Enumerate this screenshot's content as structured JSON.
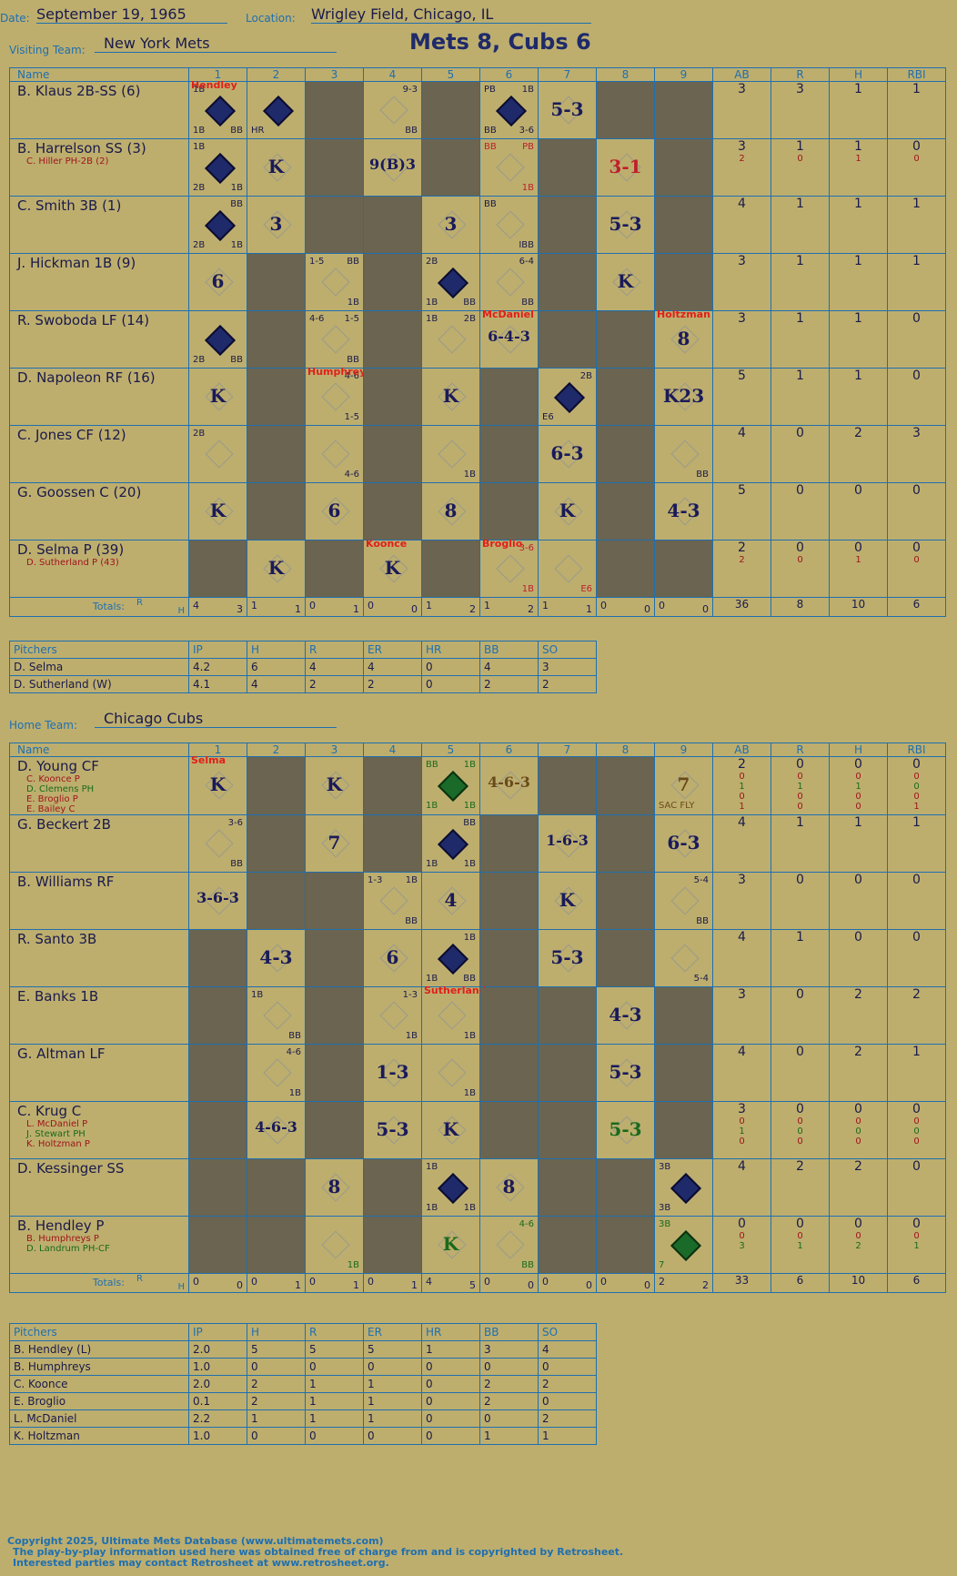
{
  "header": {
    "date_label": "Date:",
    "date": "September 19, 1965",
    "location_label": "Location:",
    "location": "Wrigley Field, Chicago, IL",
    "visiting_label": "Visiting Team:",
    "visiting_team": "New York Mets",
    "title": "Mets 8, Cubs 6",
    "home_label": "Home Team:",
    "home_team": "Chicago Cubs"
  },
  "columns": {
    "name": "Name",
    "innings": [
      "1",
      "2",
      "3",
      "4",
      "5",
      "6",
      "7",
      "8",
      "9"
    ],
    "stats": [
      "AB",
      "R",
      "H",
      "RBI"
    ],
    "totals_label": "Totals:",
    "r_label": "R",
    "h_label": "H"
  },
  "visitors": {
    "players": [
      {
        "name": "B. Klaus 2B-SS (6)",
        "subs": [],
        "ab": "3",
        "r": "3",
        "h": "1",
        "rbi": "1"
      },
      {
        "name": "B. Harrelson SS (3)",
        "subs": [
          {
            "name": "C. Hiller PH-2B (2)",
            "ab": "2",
            "r": "0",
            "h": "1",
            "rbi": "0"
          }
        ],
        "ab": "3",
        "r": "1",
        "h": "1",
        "rbi": "0"
      },
      {
        "name": "C. Smith 3B (1)",
        "subs": [],
        "ab": "4",
        "r": "1",
        "h": "1",
        "rbi": "1"
      },
      {
        "name": "J. Hickman 1B (9)",
        "subs": [],
        "ab": "3",
        "r": "1",
        "h": "1",
        "rbi": "1"
      },
      {
        "name": "R. Swoboda LF (14)",
        "subs": [],
        "ab": "3",
        "r": "1",
        "h": "1",
        "rbi": "0"
      },
      {
        "name": "D. Napoleon RF (16)",
        "subs": [],
        "ab": "5",
        "r": "1",
        "h": "1",
        "rbi": "0"
      },
      {
        "name": "C. Jones CF (12)",
        "subs": [],
        "ab": "4",
        "r": "0",
        "h": "2",
        "rbi": "3"
      },
      {
        "name": "G. Goossen C (20)",
        "subs": [],
        "ab": "5",
        "r": "0",
        "h": "0",
        "rbi": "0"
      },
      {
        "name": "D. Selma P (39)",
        "subs": [
          {
            "name": "D. Sutherland P (43)",
            "ab": "2",
            "r": "0",
            "h": "1",
            "rbi": "0"
          }
        ],
        "ab": "2",
        "r": "0",
        "h": "0",
        "rbi": "0"
      }
    ],
    "totals": [
      [
        "4",
        "3"
      ],
      [
        "1",
        "1"
      ],
      [
        "0",
        "1"
      ],
      [
        "0",
        "0"
      ],
      [
        "1",
        "2"
      ],
      [
        "1",
        "2"
      ],
      [
        "1",
        "1"
      ],
      [
        "0",
        "0"
      ],
      [
        "0",
        "0"
      ]
    ],
    "total_stats": {
      "ab": "36",
      "r": "8",
      "h": "10",
      "rbi": "6"
    },
    "cells": [
      [
        {
          "t": "sc",
          "tl": "1B",
          "bl": "1B",
          "br": "BB",
          "note": "Hendley"
        },
        {
          "t": "sc",
          "bl": "HR"
        },
        {
          "t": "dark"
        },
        {
          "tr": "9-3",
          "br": "BB"
        },
        {
          "t": "dark"
        },
        {
          "t": "sc",
          "tl": "PB",
          "tr": "1B",
          "bl": "BB",
          "br": "3-6"
        },
        {
          "res": "5-3"
        },
        {
          "t": "dark"
        },
        {
          "t": "dark"
        }
      ],
      [
        {
          "t": "sc",
          "tl": "1B",
          "bl": "2B",
          "br": "1B"
        },
        {
          "res": "K"
        },
        {
          "t": "dark"
        },
        {
          "res": "9(B)3"
        },
        {
          "t": "dark"
        },
        {
          "tl": "BB",
          "tr": "PB",
          "br": "1B",
          "red": true
        },
        {
          "t": "dark"
        },
        {
          "res": "3-1",
          "red": true
        },
        {
          "t": "dark"
        }
      ],
      [
        {
          "t": "sc",
          "tr": "BB",
          "bl": "2B",
          "br": "1B"
        },
        {
          "res": "3"
        },
        {
          "t": "dark"
        },
        {
          "t": "dark"
        },
        {
          "res": "3"
        },
        {
          "tl": "BB",
          "br": "IBB"
        },
        {
          "t": "dark"
        },
        {
          "res": "5-3"
        },
        {
          "t": "dark"
        }
      ],
      [
        {
          "res": "6"
        },
        {
          "t": "dark"
        },
        {
          "tl": "1-5",
          "tr": "BB",
          "br": "1B"
        },
        {
          "t": "dark"
        },
        {
          "t": "sc",
          "tl": "2B",
          "bl": "1B",
          "br": "BB"
        },
        {
          "tr": "6-4",
          "br": "BB"
        },
        {
          "t": "dark"
        },
        {
          "res": "K"
        },
        {
          "t": "dark"
        }
      ],
      [
        {
          "t": "sc",
          "bl": "2B",
          "br": "BB"
        },
        {
          "t": "dark"
        },
        {
          "tl": "4-6",
          "tr": "1-5",
          "br": "BB"
        },
        {
          "t": "dark"
        },
        {
          "tl": "1B",
          "tr": "2B"
        },
        {
          "res": "6-4-3",
          "note": "McDaniel"
        },
        {
          "t": "dark"
        },
        {
          "t": "dark"
        },
        {
          "res": "8",
          "note": "Holtzman"
        }
      ],
      [
        {
          "res": "K"
        },
        {
          "t": "dark"
        },
        {
          "tr": "4-6",
          "br": "1-5",
          "note": "Humphreys"
        },
        {
          "t": "dark"
        },
        {
          "res": "K"
        },
        {
          "t": "dark"
        },
        {
          "t": "sc",
          "tr": "2B",
          "bl": "E6"
        },
        {
          "t": "dark"
        },
        {
          "res": "K23"
        }
      ],
      [
        {
          "tl": "2B"
        },
        {
          "t": "dark"
        },
        {
          "br": "4-6"
        },
        {
          "t": "dark"
        },
        {
          "br": "1B"
        },
        {
          "t": "dark"
        },
        {
          "res": "6-3"
        },
        {
          "t": "dark"
        },
        {
          "br": "BB"
        }
      ],
      [
        {
          "res": "K"
        },
        {
          "t": "dark"
        },
        {
          "res": "6"
        },
        {
          "t": "dark"
        },
        {
          "res": "8"
        },
        {
          "t": "dark"
        },
        {
          "res": "K"
        },
        {
          "t": "dark"
        },
        {
          "res": "4-3"
        }
      ],
      [
        {
          "t": "dark"
        },
        {
          "res": "K"
        },
        {
          "t": "dark"
        },
        {
          "res": "K",
          "note": "Koonce"
        },
        {
          "t": "dark"
        },
        {
          "tr": "3-6",
          "br": "1B",
          "note": "Broglio",
          "red": true
        },
        {
          "br": "E6",
          "red": true
        },
        {
          "t": "dark"
        },
        {
          "t": "dark"
        }
      ]
    ],
    "pitchers_header": [
      "Pitchers",
      "IP",
      "H",
      "R",
      "ER",
      "HR",
      "BB",
      "SO"
    ],
    "pitchers": [
      [
        "D. Selma",
        "4.2",
        "6",
        "4",
        "4",
        "0",
        "4",
        "3"
      ],
      [
        "D. Sutherland (W)",
        "4.1",
        "4",
        "2",
        "2",
        "0",
        "2",
        "2"
      ]
    ]
  },
  "home": {
    "players": [
      {
        "name": "D. Young CF",
        "subs": [
          {
            "name": "C. Koonce P",
            "ab": "0",
            "r": "0",
            "h": "0",
            "rbi": "0",
            "c": "darkred"
          },
          {
            "name": "D. Clemens PH",
            "ab": "1",
            "r": "1",
            "h": "1",
            "rbi": "0",
            "c": "green"
          },
          {
            "name": "E. Broglio P",
            "ab": "0",
            "r": "0",
            "h": "0",
            "rbi": "0",
            "c": "darkred"
          },
          {
            "name": "E. Bailey C",
            "ab": "1",
            "r": "0",
            "h": "0",
            "rbi": "1",
            "c": "darkred"
          }
        ],
        "ab": "2",
        "r": "0",
        "h": "0",
        "rbi": "0"
      },
      {
        "name": "G. Beckert 2B",
        "subs": [],
        "ab": "4",
        "r": "1",
        "h": "1",
        "rbi": "1"
      },
      {
        "name": "B. Williams RF",
        "subs": [],
        "ab": "3",
        "r": "0",
        "h": "0",
        "rbi": "0"
      },
      {
        "name": "R. Santo 3B",
        "subs": [],
        "ab": "4",
        "r": "1",
        "h": "0",
        "rbi": "0"
      },
      {
        "name": "E. Banks 1B",
        "subs": [],
        "ab": "3",
        "r": "0",
        "h": "2",
        "rbi": "2"
      },
      {
        "name": "G. Altman LF",
        "subs": [],
        "ab": "4",
        "r": "0",
        "h": "2",
        "rbi": "1"
      },
      {
        "name": "C. Krug C",
        "subs": [
          {
            "name": "L. McDaniel P",
            "ab": "0",
            "r": "0",
            "h": "0",
            "rbi": "0",
            "c": "darkred"
          },
          {
            "name": "J. Stewart PH",
            "ab": "1",
            "r": "0",
            "h": "0",
            "rbi": "0",
            "c": "green"
          },
          {
            "name": "K. Holtzman P",
            "ab": "0",
            "r": "0",
            "h": "0",
            "rbi": "0",
            "c": "darkred"
          }
        ],
        "ab": "3",
        "r": "0",
        "h": "0",
        "rbi": "0"
      },
      {
        "name": "D. Kessinger SS",
        "subs": [],
        "ab": "4",
        "r": "2",
        "h": "2",
        "rbi": "0"
      },
      {
        "name": "B. Hendley P",
        "subs": [
          {
            "name": "B. Humphreys P",
            "ab": "0",
            "r": "0",
            "h": "0",
            "rbi": "0",
            "c": "darkred"
          },
          {
            "name": "D. Landrum PH-CF",
            "ab": "3",
            "r": "1",
            "h": "2",
            "rbi": "1",
            "c": "green"
          }
        ],
        "ab": "0",
        "r": "0",
        "h": "0",
        "rbi": "0"
      }
    ],
    "totals": [
      [
        "0",
        "0"
      ],
      [
        "0",
        "1"
      ],
      [
        "0",
        "1"
      ],
      [
        "0",
        "1"
      ],
      [
        "4",
        "5"
      ],
      [
        "0",
        "0"
      ],
      [
        "0",
        "0"
      ],
      [
        "0",
        "0"
      ],
      [
        "2",
        "2"
      ]
    ],
    "total_stats": {
      "ab": "33",
      "r": "6",
      "h": "10",
      "rbi": "6"
    },
    "cells": [
      [
        {
          "res": "K",
          "note": "Selma"
        },
        {
          "t": "dark"
        },
        {
          "res": "K"
        },
        {
          "t": "dark"
        },
        {
          "t": "scg",
          "tl": "BB",
          "tr": "1B",
          "bl": "1B",
          "br": "1B",
          "green": true
        },
        {
          "res": "4-6-3",
          "brown": true
        },
        {
          "t": "dark"
        },
        {
          "t": "dark"
        },
        {
          "res": "7",
          "bl": "SAC FLY",
          "brown": true
        }
      ],
      [
        {
          "tr": "3-6",
          "br": "BB"
        },
        {
          "t": "dark"
        },
        {
          "res": "7"
        },
        {
          "t": "dark"
        },
        {
          "t": "sc",
          "tr": "BB",
          "bl": "1B",
          "br": "1B"
        },
        {
          "t": "dark"
        },
        {
          "res": "1-6-3"
        },
        {
          "t": "dark"
        },
        {
          "res": "6-3"
        }
      ],
      [
        {
          "res": "3-6-3"
        },
        {
          "t": "dark"
        },
        {
          "t": "dark"
        },
        {
          "tl": "1-3",
          "tr": "1B",
          "br": "BB"
        },
        {
          "res": "4"
        },
        {
          "t": "dark"
        },
        {
          "res": "K"
        },
        {
          "t": "dark"
        },
        {
          "tr": "5-4",
          "br": "BB"
        }
      ],
      [
        {
          "t": "dark"
        },
        {
          "res": "4-3"
        },
        {
          "t": "dark"
        },
        {
          "res": "6"
        },
        {
          "t": "sc",
          "tr": "1B",
          "bl": "1B",
          "br": "BB"
        },
        {
          "t": "dark"
        },
        {
          "res": "5-3"
        },
        {
          "t": "dark"
        },
        {
          "br": "5-4"
        }
      ],
      [
        {
          "t": "dark"
        },
        {
          "tl": "1B",
          "br": "BB"
        },
        {
          "t": "dark"
        },
        {
          "tr": "1-3",
          "br": "1B"
        },
        {
          "br": "1B",
          "note": "Sutherland"
        },
        {
          "t": "dark"
        },
        {
          "t": "dark"
        },
        {
          "res": "4-3"
        },
        {
          "t": "dark"
        }
      ],
      [
        {
          "t": "dark"
        },
        {
          "tr": "4-6",
          "br": "1B"
        },
        {
          "t": "dark"
        },
        {
          "res": "1-3"
        },
        {
          "br": "1B"
        },
        {
          "t": "dark"
        },
        {
          "t": "dark"
        },
        {
          "res": "5-3"
        },
        {
          "t": "dark"
        }
      ],
      [
        {
          "t": "dark"
        },
        {
          "res": "4-6-3"
        },
        {
          "t": "dark"
        },
        {
          "res": "5-3"
        },
        {
          "res": "K"
        },
        {
          "t": "dark"
        },
        {
          "t": "dark"
        },
        {
          "res": "5-3",
          "green": true
        },
        {
          "t": "dark"
        }
      ],
      [
        {
          "t": "dark"
        },
        {
          "t": "dark"
        },
        {
          "res": "8"
        },
        {
          "t": "dark"
        },
        {
          "t": "sc",
          "tl": "1B",
          "bl": "1B",
          "br": "1B"
        },
        {
          "res": "8"
        },
        {
          "t": "dark"
        },
        {
          "t": "dark"
        },
        {
          "t": "sc",
          "tl": "3B",
          "bl": "3B"
        }
      ],
      [
        {
          "t": "dark"
        },
        {
          "t": "dark"
        },
        {
          "br": "1B",
          "green": true
        },
        {
          "t": "dark"
        },
        {
          "res": "K",
          "green": true
        },
        {
          "tr": "4-6",
          "br": "BB",
          "green": true
        },
        {
          "t": "dark"
        },
        {
          "t": "dark"
        },
        {
          "t": "scg",
          "tl": "3B",
          "bl": "7",
          "green": true
        }
      ]
    ],
    "pitchers_header": [
      "Pitchers",
      "IP",
      "H",
      "R",
      "ER",
      "HR",
      "BB",
      "SO"
    ],
    "pitchers": [
      [
        "B. Hendley (L)",
        "2.0",
        "5",
        "5",
        "5",
        "1",
        "3",
        "4"
      ],
      [
        "B. Humphreys",
        "1.0",
        "0",
        "0",
        "0",
        "0",
        "0",
        "0"
      ],
      [
        "C. Koonce",
        "2.0",
        "2",
        "1",
        "1",
        "0",
        "2",
        "2"
      ],
      [
        "E. Broglio",
        "0.1",
        "2",
        "1",
        "1",
        "0",
        "2",
        "0"
      ],
      [
        "L. McDaniel",
        "2.2",
        "1",
        "1",
        "1",
        "0",
        "0",
        "2"
      ],
      [
        "K. Holtzman",
        "1.0",
        "0",
        "0",
        "0",
        "0",
        "1",
        "1"
      ]
    ]
  },
  "footer": {
    "line1": "Copyright 2025, Ultimate Mets Database (www.ultimatemets.com)",
    "line2": "The play-by-play information used here was obtained free of charge from and is copyrighted by Retrosheet.",
    "line3": "Interested parties may contact Retrosheet at www.retrosheet.org."
  }
}
